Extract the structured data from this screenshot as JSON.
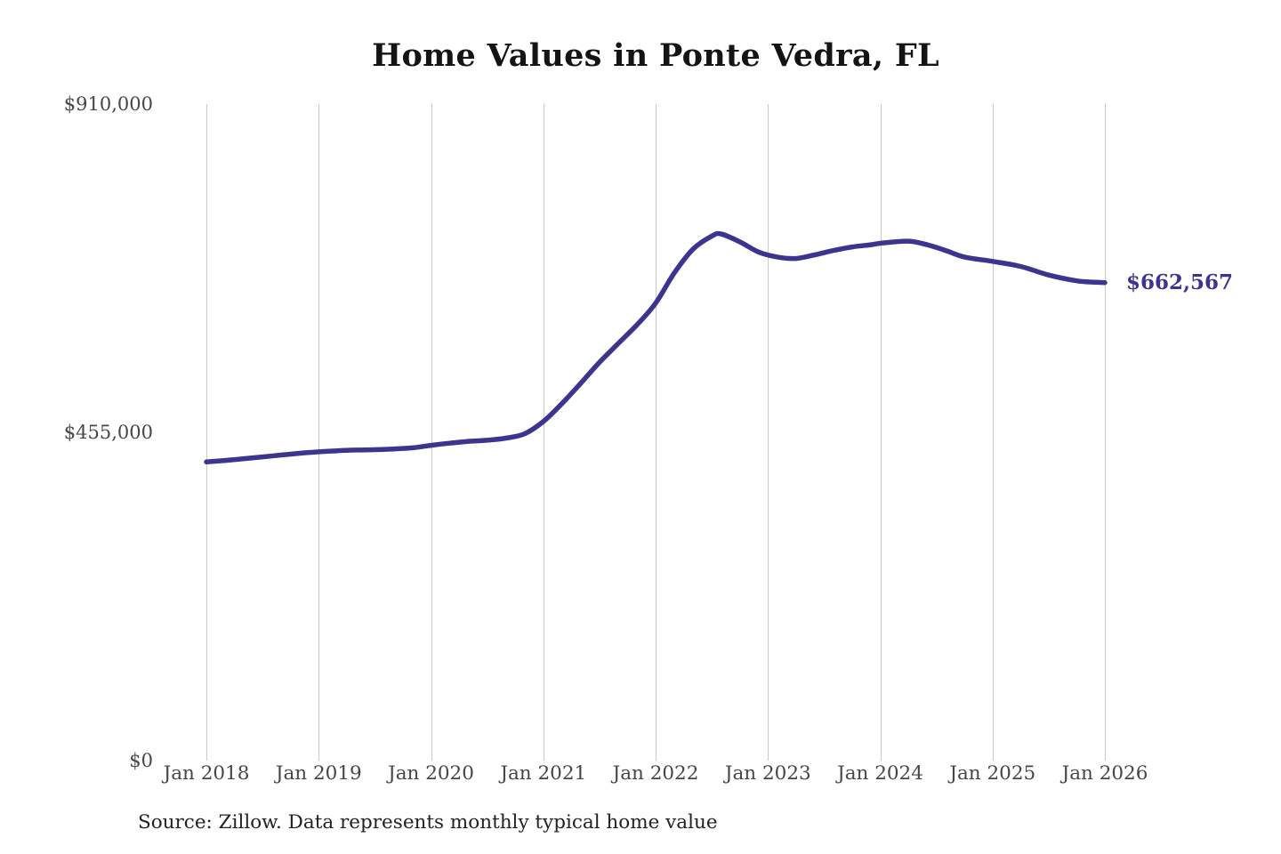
{
  "chart_data": {
    "type": "line",
    "title": "Home Values in Ponte Vedra, FL",
    "xlabel": "",
    "ylabel": "",
    "ylim": [
      0,
      910000
    ],
    "grid": "vertical-gridlines-only",
    "legend": "none",
    "line_color": "#3b3590",
    "gridline_color": "#c9c9c9",
    "tick_label_color": "#464646",
    "y_tick_labels": [
      "$910,000",
      "$455,000",
      "$0"
    ],
    "y_tick_values": [
      910000,
      455000,
      0
    ],
    "x_tick_labels": [
      "Jan 2018",
      "Jan 2019",
      "Jan 2020",
      "Jan 2021",
      "Jan 2022",
      "Jan 2023",
      "Jan 2024",
      "Jan 2025",
      "Jan 2026"
    ],
    "end_label": "$662,567",
    "latest_value": 662567,
    "series": [
      {
        "name": "Monthly typical home value",
        "points": [
          {
            "date": "2018-01",
            "value": 414000
          },
          {
            "date": "2018-03",
            "value": 416000
          },
          {
            "date": "2018-05",
            "value": 418500
          },
          {
            "date": "2018-07",
            "value": 421000
          },
          {
            "date": "2018-09",
            "value": 423500
          },
          {
            "date": "2018-11",
            "value": 426000
          },
          {
            "date": "2019-01",
            "value": 428000
          },
          {
            "date": "2019-03",
            "value": 429500
          },
          {
            "date": "2019-05",
            "value": 430500
          },
          {
            "date": "2019-07",
            "value": 431000
          },
          {
            "date": "2019-09",
            "value": 432000
          },
          {
            "date": "2019-11",
            "value": 433500
          },
          {
            "date": "2020-01",
            "value": 437000
          },
          {
            "date": "2020-03",
            "value": 440000
          },
          {
            "date": "2020-05",
            "value": 442500
          },
          {
            "date": "2020-07",
            "value": 444000
          },
          {
            "date": "2020-09",
            "value": 447000
          },
          {
            "date": "2020-11",
            "value": 453000
          },
          {
            "date": "2021-01",
            "value": 470000
          },
          {
            "date": "2021-03",
            "value": 495000
          },
          {
            "date": "2021-05",
            "value": 523000
          },
          {
            "date": "2021-07",
            "value": 552000
          },
          {
            "date": "2021-09",
            "value": 578000
          },
          {
            "date": "2021-11",
            "value": 604000
          },
          {
            "date": "2022-01",
            "value": 634000
          },
          {
            "date": "2022-03",
            "value": 676000
          },
          {
            "date": "2022-05",
            "value": 709000
          },
          {
            "date": "2022-07",
            "value": 727000
          },
          {
            "date": "2022-08",
            "value": 730000
          },
          {
            "date": "2022-10",
            "value": 719000
          },
          {
            "date": "2022-12",
            "value": 705000
          },
          {
            "date": "2023-02",
            "value": 698000
          },
          {
            "date": "2023-04",
            "value": 696000
          },
          {
            "date": "2023-06",
            "value": 701000
          },
          {
            "date": "2023-08",
            "value": 707000
          },
          {
            "date": "2023-10",
            "value": 712000
          },
          {
            "date": "2023-12",
            "value": 715000
          },
          {
            "date": "2024-01",
            "value": 717000
          },
          {
            "date": "2024-04",
            "value": 720000
          },
          {
            "date": "2024-06",
            "value": 715000
          },
          {
            "date": "2024-08",
            "value": 707000
          },
          {
            "date": "2024-10",
            "value": 698000
          },
          {
            "date": "2025-01",
            "value": 692000
          },
          {
            "date": "2025-04",
            "value": 685000
          },
          {
            "date": "2025-07",
            "value": 673000
          },
          {
            "date": "2025-10",
            "value": 665000
          },
          {
            "date": "2025-12",
            "value": 663000
          },
          {
            "date": "2026-01",
            "value": 662567
          }
        ]
      }
    ]
  },
  "footer": {
    "source": "Source: Zillow. Data represents monthly typical home value"
  }
}
